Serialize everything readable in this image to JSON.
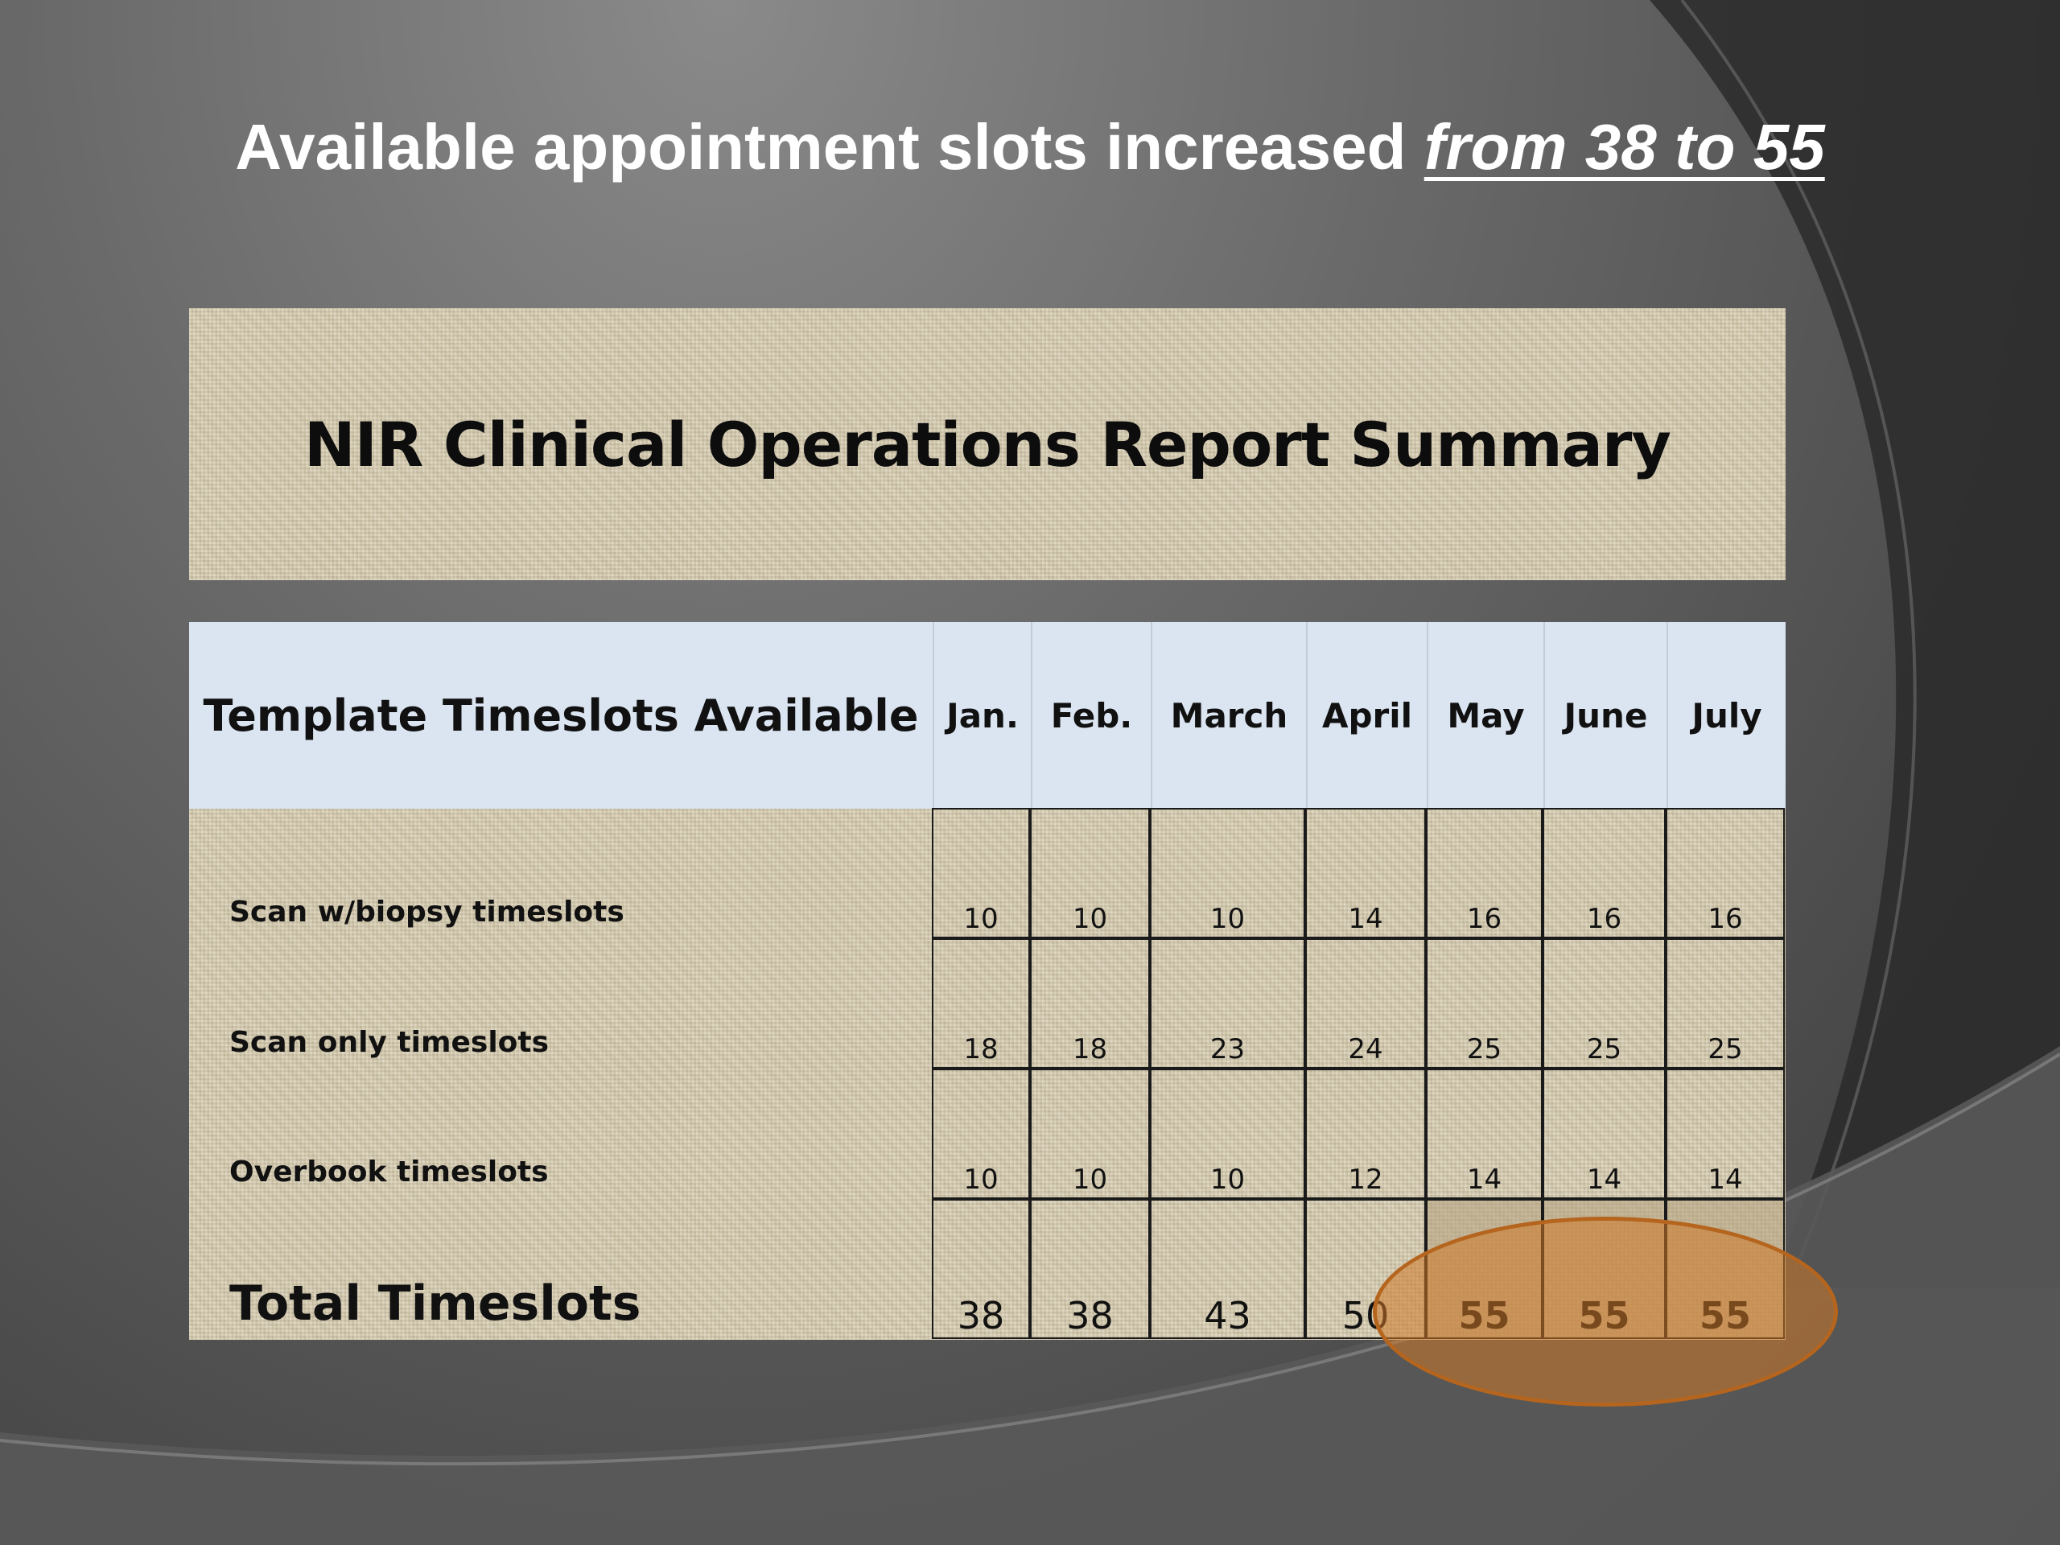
{
  "slide": {
    "title_main": "Available appointment slots increased ",
    "title_emph": "from 38 to 55"
  },
  "report": {
    "title": "NIR Clinical Operations Report Summary"
  },
  "table": {
    "header_label": "Template Timeslots Available",
    "months": [
      "Jan.",
      "Feb.",
      "March",
      "April",
      "May",
      "June",
      "July"
    ],
    "rows": [
      {
        "label": "Scan w/biopsy timeslots",
        "values": [
          "10",
          "10",
          "10",
          "14",
          "16",
          "16",
          "16"
        ]
      },
      {
        "label": "Scan only timeslots",
        "values": [
          "18",
          "18",
          "23",
          "24",
          "25",
          "25",
          "25"
        ]
      },
      {
        "label": "Overbook timeslots",
        "values": [
          "10",
          "10",
          "10",
          "12",
          "14",
          "14",
          "14"
        ]
      },
      {
        "label": "Total Timeslots",
        "values": [
          "38",
          "38",
          "43",
          "50",
          "55",
          "55",
          "55"
        ]
      }
    ]
  },
  "colors": {
    "highlight_ellipse": "#cd7828",
    "header_row": "#dbe5f1",
    "burlap": "#d8cdb0"
  }
}
